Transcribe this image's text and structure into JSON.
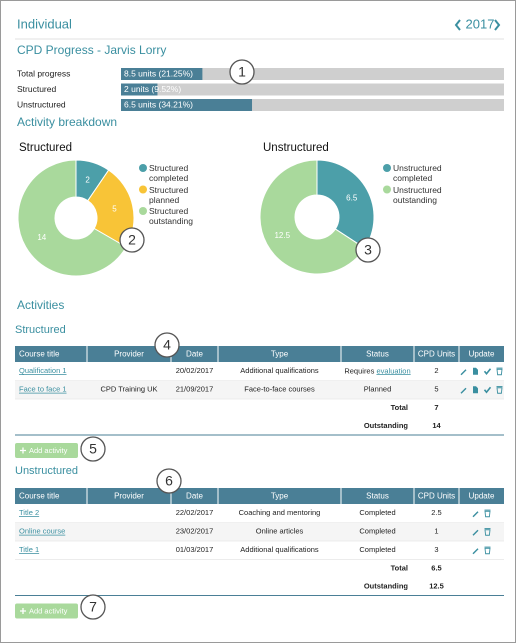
{
  "header": {
    "title": "Individual",
    "year": "2017"
  },
  "progress": {
    "title": "CPD Progress - Jarvis Lorry",
    "xlim": [
      0,
      100
    ],
    "color": "#4a7f96",
    "rows": [
      {
        "label": "Total progress",
        "text": "8.5 units (21.25%)",
        "percent": 21.25
      },
      {
        "label": "Structured",
        "text": "2 units (9.52%)",
        "percent": 9.52
      },
      {
        "label": "Unstructured",
        "text": "6.5 units (34.21%)",
        "percent": 34.21
      }
    ]
  },
  "breakdown": {
    "title": "Activity breakdown"
  },
  "chart_data": [
    {
      "type": "pie",
      "title": "Structured",
      "categories": [
        "Structured completed",
        "Structured planned",
        "Structured outstanding"
      ],
      "values": [
        2,
        5,
        14
      ],
      "colors": [
        "#4c9fa9",
        "#f8c437",
        "#a9d99c"
      ]
    },
    {
      "type": "pie",
      "title": "Unstructured",
      "categories": [
        "Unstructured completed",
        "Unstructured outstanding"
      ],
      "values": [
        6.5,
        12.5
      ],
      "colors": [
        "#4c9fa9",
        "#a9d99c"
      ]
    }
  ],
  "activities": {
    "title": "Activities",
    "columns": [
      "Course title",
      "Provider",
      "Date",
      "Type",
      "Status",
      "CPD Units",
      "Update"
    ],
    "sections": [
      {
        "title": "Structured",
        "rows": [
          {
            "title": "Qualification 1",
            "provider": null,
            "date": "20/02/2017",
            "type": "Additional qualifications",
            "status": {
              "text": "Requires",
              "link": "evaluation"
            },
            "units": 2
          },
          {
            "title": "Face to face 1",
            "provider": "CPD Training UK",
            "date": "21/09/2017",
            "type": "Face-to-face courses",
            "status": "Planned",
            "units": 5
          }
        ],
        "total_label": "Total",
        "total": 7,
        "outstanding_label": "Outstanding",
        "outstanding": 14,
        "button": "Add activity"
      },
      {
        "title": "Unstructured",
        "rows": [
          {
            "title": "Title 2",
            "provider": null,
            "date": "22/02/2017",
            "type": "Coaching and mentoring",
            "status": "Completed",
            "units": 2.5
          },
          {
            "title": "Online course",
            "provider": null,
            "date": "23/02/2017",
            "type": "Online articles",
            "status": "Completed",
            "units": 1
          },
          {
            "title": "Title 1",
            "provider": null,
            "date": "01/03/2017",
            "type": "Additional qualifications",
            "status": "Completed",
            "units": 3
          }
        ],
        "total_label": "Total",
        "total": 6.5,
        "outstanding_label": "Outstanding",
        "outstanding": 12.5,
        "button": "Add activity"
      }
    ]
  },
  "callouts": [
    "1",
    "2",
    "3",
    "4",
    "5",
    "6",
    "7"
  ]
}
